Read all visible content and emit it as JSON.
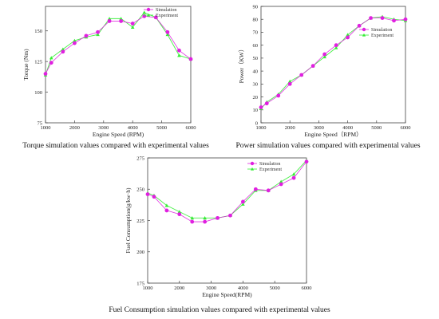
{
  "chart_data": [
    {
      "id": "torque",
      "type": "line",
      "xlabel": "Engine Speed (RPM)",
      "ylabel": "Torque (Nm)",
      "xlim": [
        1000,
        6000
      ],
      "ylim": [
        75,
        170
      ],
      "xticks": [
        1000,
        2000,
        3000,
        4000,
        5000,
        6000
      ],
      "yticks": [
        75,
        100,
        125,
        150
      ],
      "legend_position": "top-right",
      "caption": "Torque simulation values compared with experimental values",
      "x": [
        1000,
        1200,
        1600,
        2000,
        2400,
        2800,
        3200,
        3600,
        4000,
        4400,
        4800,
        5200,
        5600,
        6000
      ],
      "series": [
        {
          "name": "Simulation",
          "color": "#e020e0",
          "marker": "circle",
          "values": [
            115,
            124,
            133,
            140,
            146,
            149,
            158,
            158,
            156,
            162,
            161,
            149,
            134,
            127
          ]
        },
        {
          "name": "Experiment",
          "color": "#33ee33",
          "marker": "triangle",
          "values": [
            114,
            128,
            135,
            142,
            145,
            147,
            160,
            160,
            153,
            165,
            161,
            147,
            130,
            127
          ]
        }
      ]
    },
    {
      "id": "power",
      "type": "line",
      "xlabel": "Engine Speed（RPM）",
      "ylabel": "Power（KW）",
      "xlim": [
        1000,
        6000
      ],
      "ylim": [
        0,
        90
      ],
      "xticks": [
        1000,
        2000,
        3000,
        4000,
        5000,
        6000
      ],
      "yticks": [
        0,
        10,
        20,
        30,
        40,
        50,
        60,
        70,
        80,
        90
      ],
      "legend_position": "top-right",
      "caption": "Power simulation values compared with experimental values",
      "x": [
        1000,
        1200,
        1600,
        2000,
        2400,
        2800,
        3200,
        3600,
        4000,
        4400,
        4800,
        5200,
        5600,
        6000
      ],
      "series": [
        {
          "name": "Simulation",
          "color": "#e020e0",
          "marker": "circle",
          "values": [
            12,
            15,
            21,
            30,
            37,
            44,
            53,
            60,
            66,
            75,
            81,
            81,
            79,
            80
          ]
        },
        {
          "name": "Experiment",
          "color": "#33ee33",
          "marker": "triangle",
          "values": [
            11,
            16,
            22,
            32,
            37,
            44,
            51,
            58,
            68,
            75,
            81,
            82,
            80,
            79
          ]
        }
      ]
    },
    {
      "id": "fuel",
      "type": "line",
      "xlabel": "Engine Speed(RPM)",
      "ylabel": "Fuel Consumption(g/kw·h)",
      "xlim": [
        1000,
        6000
      ],
      "ylim": [
        175,
        275
      ],
      "xticks": [
        1000,
        2000,
        3000,
        4000,
        5000,
        6000
      ],
      "yticks": [
        175,
        200,
        225,
        250,
        275
      ],
      "legend_position": "top-left",
      "caption": "Fuel Consumption simulation values compared with experimental values",
      "x": [
        1000,
        1200,
        1600,
        2000,
        2400,
        2800,
        3200,
        3600,
        4000,
        4400,
        4800,
        5200,
        5600,
        6000
      ],
      "series": [
        {
          "name": "Simulation",
          "color": "#e020e0",
          "marker": "circle",
          "values": [
            246,
            244,
            233,
            230,
            224,
            224,
            227,
            229,
            240,
            250,
            249,
            254,
            259,
            272
          ]
        },
        {
          "name": "Experiment",
          "color": "#33ee33",
          "marker": "triangle",
          "values": [
            247,
            245,
            237,
            232,
            227,
            227,
            227,
            229,
            238,
            249,
            249,
            256,
            262,
            273
          ]
        }
      ]
    }
  ]
}
